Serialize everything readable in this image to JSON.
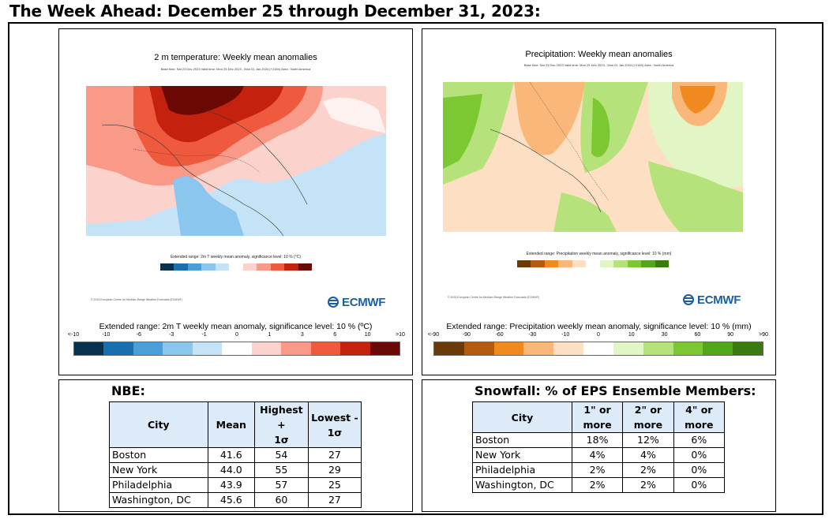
{
  "header": {
    "title": "The Week Ahead: December 25 through December 31, 2023:"
  },
  "temp_map": {
    "title": "2 m temperature: Weekly mean anomalies",
    "subtitle": "Base time: Sat 23 Dec 2023 Valid time: Mon 25 Dec 2023 - Mon 01 Jan 2024 (+216h) Area : North America",
    "small_caption": "Extended range: 2m T weekly mean anomaly, significance level: 10 % (°C)",
    "legal_text": "© 2023 European Centre for Medium-Range Weather Forecasts (ECMWF)",
    "logo_text": "ECMWF",
    "extended_label": "Extended range: 2m T weekly mean anomaly, significance level: 10 % (ºC)",
    "ticks": [
      "<-10",
      "-10",
      "-6",
      "-3",
      "-1",
      "0",
      "1",
      "3",
      "6",
      "10",
      ">10"
    ],
    "colors": [
      "#08304f",
      "#1a6faf",
      "#4a9fd6",
      "#8ac6ee",
      "#c4e3f7",
      "#ffffff",
      "#fcd3cc",
      "#f99a88",
      "#ef5a3e",
      "#c4210e",
      "#6b0a05"
    ]
  },
  "precip_map": {
    "title": "Precipitation: Weekly mean anomalies",
    "subtitle": "Base time: Sat 23 Dec 2023 Valid time: Mon 25 Dec 2023 - Mon 01 Jan 2024 (+216h) Area : North America",
    "small_caption": "Extended range: Precipitation weekly mean anomaly, significance level: 10 % (mm)",
    "legal_text": "© 2023 European Centre for Medium-Range Weather Forecasts (ECMWF)",
    "logo_text": "ECMWF",
    "extended_label": "Extended range: Precipitation weekly mean anomaly, significance level: 10 % (mm)",
    "ticks": [
      "<-90",
      "-90",
      "-60",
      "-30",
      "-10",
      "0",
      "10",
      "30",
      "60",
      "90",
      ">90"
    ],
    "colors": [
      "#6b3a0a",
      "#b45b12",
      "#f08a1e",
      "#f9b87a",
      "#fde0c4",
      "#ffffff",
      "#e2f5c4",
      "#b5e27a",
      "#7cc832",
      "#52a61c",
      "#3a7a0e"
    ]
  },
  "nbe": {
    "title": "NBE:",
    "headers": [
      "City",
      "Mean",
      "Highest + 1σ",
      "Lowest - 1σ"
    ],
    "headers_line1": [
      "City",
      "Mean",
      "Highest +",
      "Lowest -"
    ],
    "headers_line2": [
      "",
      "",
      "1σ",
      "1σ"
    ],
    "rows": [
      [
        "Boston",
        "41.6",
        "54",
        "27"
      ],
      [
        "New York",
        "44.0",
        "55",
        "29"
      ],
      [
        "Philadelphia",
        "43.9",
        "57",
        "25"
      ],
      [
        "Washington, DC",
        "45.6",
        "60",
        "27"
      ]
    ]
  },
  "snowfall": {
    "title": "Snowfall: % of EPS Ensemble Members:",
    "headers_line1": [
      "City",
      "1\" or",
      "2\" or",
      "4\" or"
    ],
    "headers_line2": [
      "",
      "more",
      "more",
      "more"
    ],
    "rows": [
      [
        "Boston",
        "18%",
        "12%",
        "6%"
      ],
      [
        "New York",
        "4%",
        "4%",
        "0%"
      ],
      [
        "Philadelphia",
        "2%",
        "2%",
        "0%"
      ],
      [
        "Washington, DC",
        "2%",
        "2%",
        "0%"
      ]
    ]
  }
}
